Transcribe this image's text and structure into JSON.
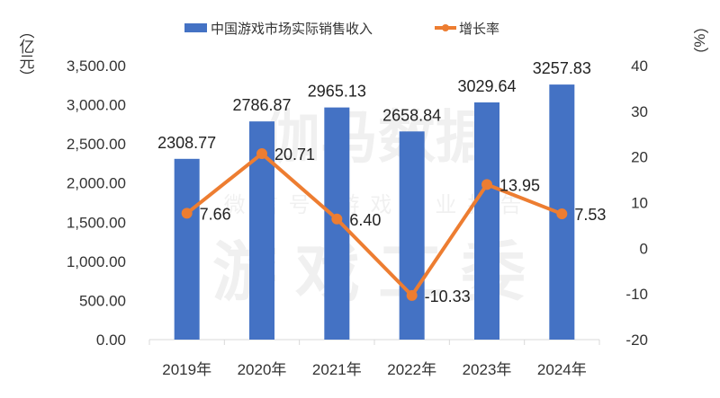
{
  "chart_data": {
    "type": "bar+line",
    "categories": [
      "2019年",
      "2020年",
      "2021年",
      "2022年",
      "2023年",
      "2024年"
    ],
    "series": [
      {
        "name": "中国游戏市场实际销售收入",
        "type": "bar",
        "axis": "left",
        "color": "#4472C4",
        "values": [
          2308.77,
          2786.87,
          2965.13,
          2658.84,
          3029.64,
          3257.83
        ],
        "labels": [
          "2308.77",
          "2786.87",
          "2965.13",
          "2658.84",
          "3029.64",
          "3257.83"
        ]
      },
      {
        "name": "增长率",
        "type": "line",
        "axis": "right",
        "color": "#ED7D31",
        "values": [
          7.66,
          20.71,
          6.4,
          -10.33,
          13.95,
          7.53
        ],
        "labels": [
          "7.66",
          "20.71",
          "6.40",
          "-10.33",
          "13.95",
          "7.53"
        ]
      }
    ],
    "y_left": {
      "label": "（亿元）",
      "ylim": [
        0,
        3500
      ],
      "ticks": [
        "0.00",
        "500.00",
        "1,000.00",
        "1,500.00",
        "2,000.00",
        "2,500.00",
        "3,000.00",
        "3,500.00"
      ]
    },
    "y_right": {
      "label": "（%）",
      "ylim": [
        -20,
        40
      ],
      "ticks": [
        "-20",
        "-10",
        "0",
        "10",
        "20",
        "30",
        "40"
      ]
    },
    "legend": "top",
    "grid": false,
    "watermark": [
      "伽马数据",
      "微信号 游戏产业报告",
      "游戏工委"
    ]
  }
}
